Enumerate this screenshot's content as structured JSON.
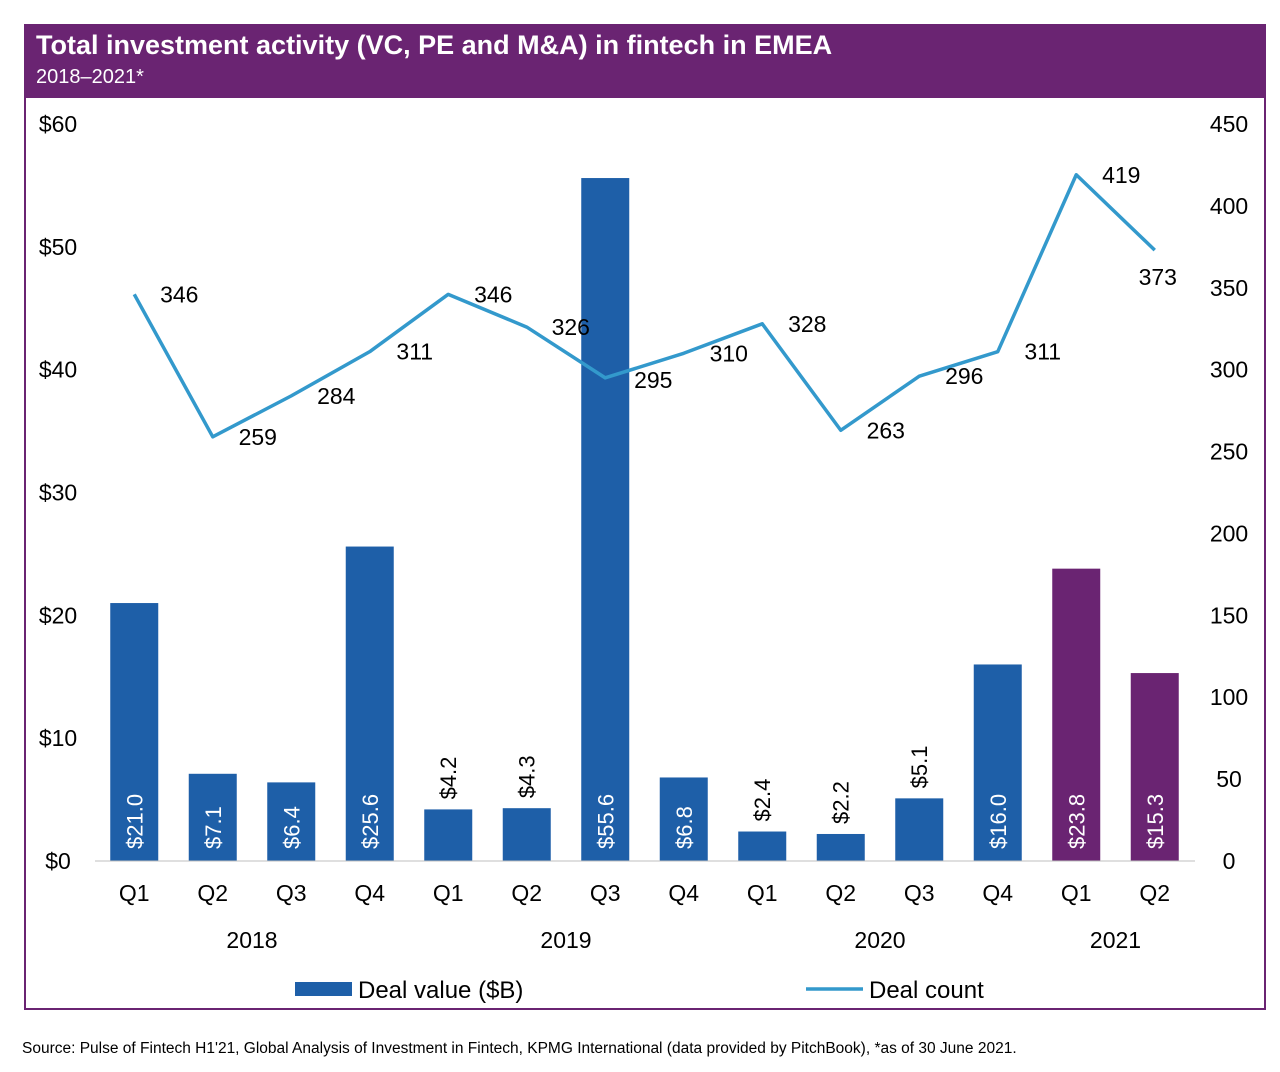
{
  "header": {
    "title": "Total investment activity (VC, PE and M&A) in fintech in EMEA",
    "subtitle": "2018–2021*"
  },
  "source": "Source: Pulse of Fintech H1'21, Global Analysis of Investment in Fintech, KPMG International (data provided by PitchBook), *as of 30 June 2021.",
  "colors": {
    "frame": "#6a2472",
    "bar_blue": "#1e5fa8",
    "bar_purple": "#6a2472",
    "line": "#3399cc"
  },
  "chart_data": {
    "type": "bar",
    "categories": [
      "Q1",
      "Q2",
      "Q3",
      "Q4",
      "Q1",
      "Q2",
      "Q3",
      "Q4",
      "Q1",
      "Q2",
      "Q3",
      "Q4",
      "Q1",
      "Q2"
    ],
    "groups": [
      {
        "label": "2018",
        "count": 4
      },
      {
        "label": "2019",
        "count": 4
      },
      {
        "label": "2020",
        "count": 4
      },
      {
        "label": "2021",
        "count": 2
      }
    ],
    "series": [
      {
        "name": "Deal value ($B)",
        "type": "bar",
        "axis": "left",
        "values": [
          21.0,
          7.1,
          6.4,
          25.6,
          4.2,
          4.3,
          55.6,
          6.8,
          2.4,
          2.2,
          5.1,
          16.0,
          23.8,
          15.3
        ],
        "labels": [
          "$21.0",
          "$7.1",
          "$6.4",
          "$25.6",
          "$4.2",
          "$4.3",
          "$55.6",
          "$6.8",
          "$2.4",
          "$2.2",
          "$5.1",
          "$16.0",
          "$23.8",
          "$15.3"
        ],
        "label_position": [
          "inside",
          "inside",
          "inside",
          "inside",
          "above",
          "above",
          "inside",
          "inside",
          "above",
          "above",
          "above",
          "inside",
          "inside",
          "inside"
        ],
        "colors": [
          "#1e5fa8",
          "#1e5fa8",
          "#1e5fa8",
          "#1e5fa8",
          "#1e5fa8",
          "#1e5fa8",
          "#1e5fa8",
          "#1e5fa8",
          "#1e5fa8",
          "#1e5fa8",
          "#1e5fa8",
          "#1e5fa8",
          "#6a2472",
          "#6a2472"
        ]
      },
      {
        "name": "Deal count",
        "type": "line",
        "axis": "right",
        "values": [
          346,
          259,
          284,
          311,
          346,
          326,
          295,
          310,
          328,
          263,
          296,
          311,
          419,
          373
        ]
      }
    ],
    "y_left": {
      "ylim": [
        0,
        60
      ],
      "ticks": [
        0,
        10,
        20,
        30,
        40,
        50,
        60
      ],
      "tick_labels": [
        "$0",
        "$10",
        "$20",
        "$30",
        "$40",
        "$50",
        "$60"
      ]
    },
    "y_right": {
      "ylim": [
        0,
        450
      ],
      "ticks": [
        0,
        50,
        100,
        150,
        200,
        250,
        300,
        350,
        400,
        450
      ],
      "tick_labels": [
        "0",
        "50",
        "100",
        "150",
        "200",
        "250",
        "300",
        "350",
        "400",
        "450"
      ]
    },
    "grid": false,
    "legend": {
      "position": "bottom",
      "entries": [
        "Deal value ($B)",
        "Deal count"
      ]
    }
  }
}
